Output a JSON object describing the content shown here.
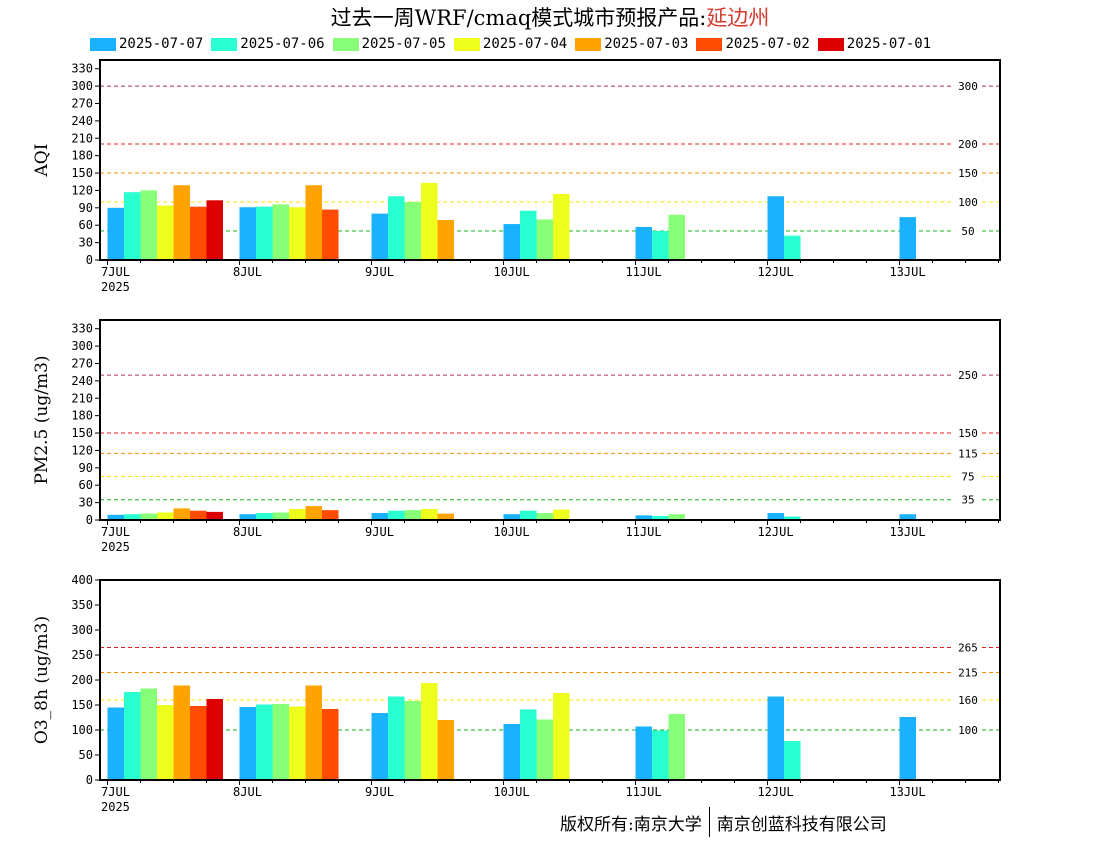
{
  "header": {
    "title": "过去一周WRF/cmaq模式城市预报产品:",
    "city": "延边州"
  },
  "footer": {
    "copyright_left": "版权所有:南京大学",
    "copyright_right": "南京创蓝科技有限公司"
  },
  "legend": [
    {
      "label": "2025-07-07",
      "color": "#1ab2ff"
    },
    {
      "label": "2025-07-06",
      "color": "#2affd2"
    },
    {
      "label": "2025-07-05",
      "color": "#88ff78"
    },
    {
      "label": "2025-07-04",
      "color": "#eeff1e"
    },
    {
      "label": "2025-07-03",
      "color": "#ffa300"
    },
    {
      "label": "2025-07-02",
      "color": "#ff4c00"
    },
    {
      "label": "2025-07-01",
      "color": "#dc0000"
    }
  ],
  "chart_data": [
    {
      "type": "bar",
      "ylabel": "AQI",
      "ylim": [
        0,
        345
      ],
      "yticks": [
        0,
        30,
        60,
        90,
        120,
        150,
        180,
        210,
        240,
        270,
        300,
        330
      ],
      "categories": [
        "7JUL",
        "8JUL",
        "9JUL",
        "10JUL",
        "11JUL",
        "12JUL",
        "13JUL"
      ],
      "year_label": "2025",
      "thresholds": [
        {
          "value": 300,
          "label": "300",
          "color": "#b0305c"
        },
        {
          "value": 200,
          "label": "200",
          "color": "#e02020"
        },
        {
          "value": 150,
          "label": "150",
          "color": "#ff8c00"
        },
        {
          "value": 100,
          "label": "100",
          "color": "#ffe600"
        },
        {
          "value": 50,
          "label": "50",
          "color": "#19b319"
        }
      ],
      "series": [
        {
          "name": "2025-07-07",
          "values": [
            90,
            91,
            80,
            62,
            57,
            110,
            74
          ]
        },
        {
          "name": "2025-07-06",
          "values": [
            117,
            92,
            110,
            85,
            50,
            42,
            null
          ]
        },
        {
          "name": "2025-07-05",
          "values": [
            120,
            96,
            100,
            70,
            78,
            null,
            null
          ]
        },
        {
          "name": "2025-07-04",
          "values": [
            94,
            91,
            133,
            114,
            null,
            null,
            null
          ]
        },
        {
          "name": "2025-07-03",
          "values": [
            129,
            129,
            69,
            null,
            null,
            null,
            null
          ]
        },
        {
          "name": "2025-07-02",
          "values": [
            92,
            87,
            null,
            null,
            null,
            null,
            null
          ]
        },
        {
          "name": "2025-07-01",
          "values": [
            103,
            null,
            null,
            null,
            null,
            null,
            null
          ]
        }
      ]
    },
    {
      "type": "bar",
      "ylabel": "PM2.5 (ug/m3)",
      "ylim": [
        0,
        345
      ],
      "yticks": [
        0,
        30,
        60,
        90,
        120,
        150,
        180,
        210,
        240,
        270,
        300,
        330
      ],
      "categories": [
        "7JUL",
        "8JUL",
        "9JUL",
        "10JUL",
        "11JUL",
        "12JUL",
        "13JUL"
      ],
      "year_label": "2025",
      "thresholds": [
        {
          "value": 250,
          "label": "250",
          "color": "#b0305c"
        },
        {
          "value": 150,
          "label": "150",
          "color": "#e02020"
        },
        {
          "value": 115,
          "label": "115",
          "color": "#ff8c00"
        },
        {
          "value": 75,
          "label": "75",
          "color": "#ffe600"
        },
        {
          "value": 35,
          "label": "35",
          "color": "#19b319"
        }
      ],
      "series": [
        {
          "name": "2025-07-07",
          "values": [
            9,
            10,
            12,
            10,
            8,
            12,
            10
          ]
        },
        {
          "name": "2025-07-06",
          "values": [
            10,
            12,
            16,
            16,
            7,
            6,
            null
          ]
        },
        {
          "name": "2025-07-05",
          "values": [
            11,
            13,
            17,
            12,
            10,
            null,
            null
          ]
        },
        {
          "name": "2025-07-04",
          "values": [
            13,
            19,
            19,
            18,
            null,
            null,
            null
          ]
        },
        {
          "name": "2025-07-03",
          "values": [
            20,
            24,
            11,
            null,
            null,
            null,
            null
          ]
        },
        {
          "name": "2025-07-02",
          "values": [
            16,
            17,
            null,
            null,
            null,
            null,
            null
          ]
        },
        {
          "name": "2025-07-01",
          "values": [
            14,
            null,
            null,
            null,
            null,
            null,
            null
          ]
        }
      ]
    },
    {
      "type": "bar",
      "ylabel": "O3_8h (ug/m3)",
      "ylim": [
        0,
        400
      ],
      "yticks": [
        0,
        50,
        100,
        150,
        200,
        250,
        300,
        350,
        400
      ],
      "categories": [
        "7JUL",
        "8JUL",
        "9JUL",
        "10JUL",
        "11JUL",
        "12JUL",
        "13JUL"
      ],
      "year_label": "2025",
      "thresholds": [
        {
          "value": 265,
          "label": "265",
          "color": "#e02020"
        },
        {
          "value": 215,
          "label": "215",
          "color": "#ff8c00"
        },
        {
          "value": 160,
          "label": "160",
          "color": "#ffe600"
        },
        {
          "value": 100,
          "label": "100",
          "color": "#19b319"
        }
      ],
      "series": [
        {
          "name": "2025-07-07",
          "values": [
            145,
            146,
            134,
            112,
            107,
            167,
            126
          ]
        },
        {
          "name": "2025-07-06",
          "values": [
            176,
            151,
            167,
            141,
            99,
            78,
            null
          ]
        },
        {
          "name": "2025-07-05",
          "values": [
            183,
            152,
            158,
            121,
            132,
            null,
            null
          ]
        },
        {
          "name": "2025-07-04",
          "values": [
            150,
            147,
            194,
            174,
            null,
            null,
            null
          ]
        },
        {
          "name": "2025-07-03",
          "values": [
            189,
            189,
            120,
            null,
            null,
            null,
            null
          ]
        },
        {
          "name": "2025-07-02",
          "values": [
            148,
            142,
            null,
            null,
            null,
            null,
            null
          ]
        },
        {
          "name": "2025-07-01",
          "values": [
            162,
            null,
            null,
            null,
            null,
            null,
            null
          ]
        }
      ]
    }
  ]
}
